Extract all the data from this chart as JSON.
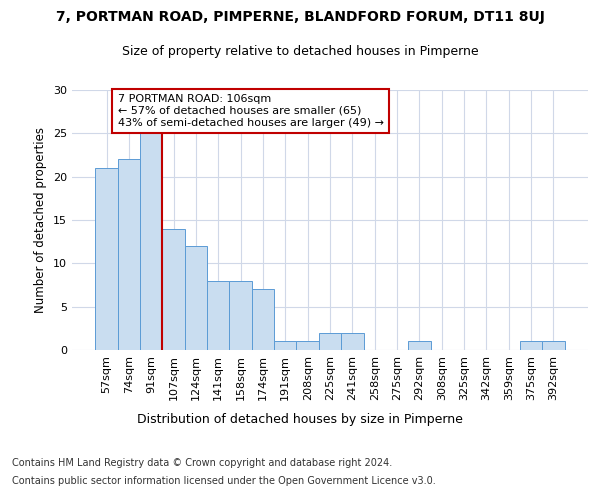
{
  "title": "7, PORTMAN ROAD, PIMPERNE, BLANDFORD FORUM, DT11 8UJ",
  "subtitle": "Size of property relative to detached houses in Pimperne",
  "xlabel": "Distribution of detached houses by size in Pimperne",
  "ylabel": "Number of detached properties",
  "categories": [
    "57sqm",
    "74sqm",
    "91sqm",
    "107sqm",
    "124sqm",
    "141sqm",
    "158sqm",
    "174sqm",
    "191sqm",
    "208sqm",
    "225sqm",
    "241sqm",
    "258sqm",
    "275sqm",
    "292sqm",
    "308sqm",
    "325sqm",
    "342sqm",
    "359sqm",
    "375sqm",
    "392sqm"
  ],
  "values": [
    21,
    22,
    25,
    14,
    12,
    8,
    8,
    7,
    1,
    1,
    2,
    2,
    0,
    0,
    1,
    0,
    0,
    0,
    0,
    1,
    1
  ],
  "bar_color": "#c9ddf0",
  "bar_edge_color": "#5b9bd5",
  "vline_index": 3,
  "vline_color": "#c00000",
  "annotation_line1": "7 PORTMAN ROAD: 106sqm",
  "annotation_line2": "← 57% of detached houses are smaller (65)",
  "annotation_line3": "43% of semi-detached houses are larger (49) →",
  "annotation_box_color": "#ffffff",
  "annotation_box_edge": "#c00000",
  "ylim": [
    0,
    30
  ],
  "yticks": [
    0,
    5,
    10,
    15,
    20,
    25,
    30
  ],
  "background_color": "#ffffff",
  "grid_color": "#d0d8e8",
  "footer1": "Contains HM Land Registry data © Crown copyright and database right 2024.",
  "footer2": "Contains public sector information licensed under the Open Government Licence v3.0."
}
